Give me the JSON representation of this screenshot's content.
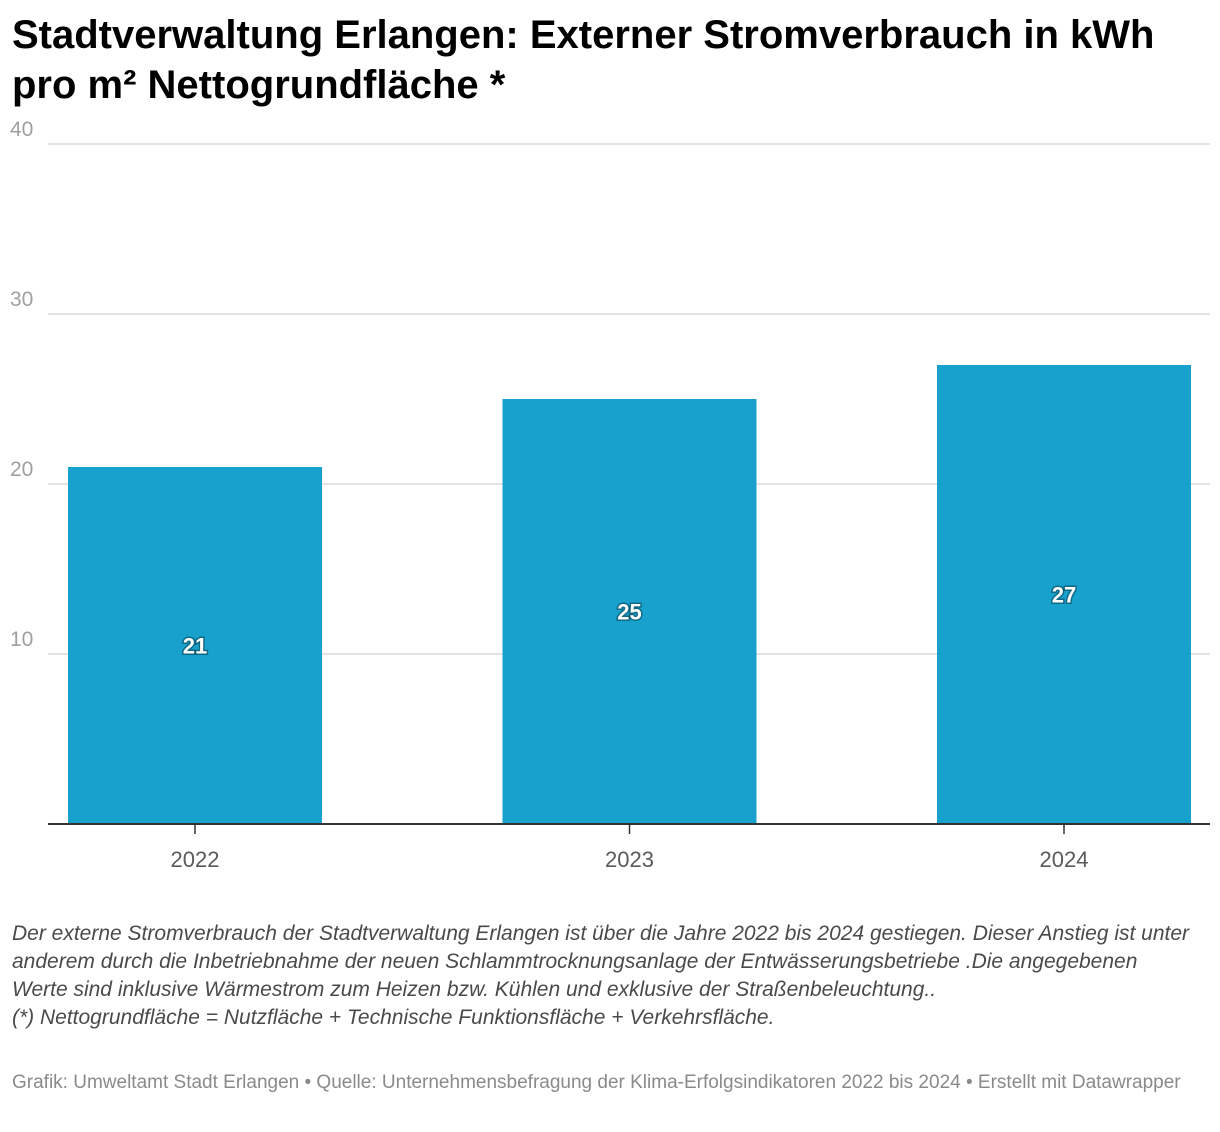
{
  "title": "Stadtverwaltung Erlangen: Externer Stromverbrauch in kWh pro m² Nettogrundfläche *",
  "chart_data": {
    "type": "bar",
    "title": "Stadtverwaltung Erlangen: Externer Stromverbrauch in kWh pro m² Nettogrundfläche *",
    "categories": [
      "2022",
      "2023",
      "2024"
    ],
    "values": [
      21,
      25,
      27
    ],
    "value_labels": [
      "21",
      "25",
      "27"
    ],
    "xlabel": "",
    "ylabel": "",
    "ylim": [
      0,
      40
    ],
    "yticks": [
      10,
      20,
      30,
      40
    ],
    "ytick_labels": [
      "10",
      "20",
      "30",
      "40"
    ],
    "grid": true,
    "legend": "none",
    "bar_color": "#18a1cd"
  },
  "notes": {
    "text": "Der externe Stromverbrauch der Stadtverwaltung Erlangen ist über die Jahre 2022 bis 2024  gestiegen. Dieser Anstieg ist unter anderem durch die Inbetriebnahme der neuen Schlammtrocknungsanlage der Entwässerungsbetriebe .Die angegebenen Werte sind inklusive Wärmestrom zum Heizen bzw. Kühlen und exklusive der Straßenbeleuchtung..",
    "definition": "(*) Nettogrundfläche = Nutzfläche + Technische Funktionsfläche + Verkehrsfläche."
  },
  "footer": "Grafik: Umweltamt Stadt Erlangen • Quelle: Unternehmensbefragung der Klima-Erfolgsindikatoren 2022 bis 2024 • Erstellt mit Datawrapper"
}
